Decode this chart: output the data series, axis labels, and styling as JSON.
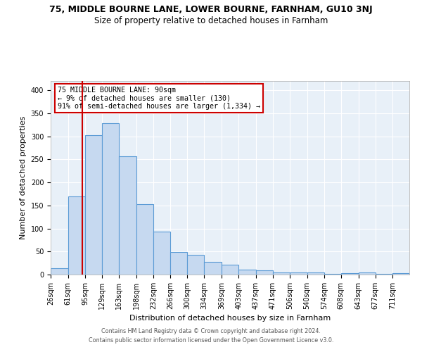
{
  "title": "75, MIDDLE BOURNE LANE, LOWER BOURNE, FARNHAM, GU10 3NJ",
  "subtitle": "Size of property relative to detached houses in Farnham",
  "xlabel": "Distribution of detached houses by size in Farnham",
  "ylabel": "Number of detached properties",
  "footer_line1": "Contains HM Land Registry data © Crown copyright and database right 2024.",
  "footer_line2": "Contains public sector information licensed under the Open Government Licence v3.0.",
  "bin_labels": [
    "26sqm",
    "61sqm",
    "95sqm",
    "129sqm",
    "163sqm",
    "198sqm",
    "232sqm",
    "266sqm",
    "300sqm",
    "334sqm",
    "369sqm",
    "403sqm",
    "437sqm",
    "471sqm",
    "506sqm",
    "540sqm",
    "574sqm",
    "608sqm",
    "643sqm",
    "677sqm",
    "711sqm"
  ],
  "hist_values": [
    13,
    170,
    302,
    328,
    257,
    153,
    93,
    49,
    43,
    27,
    21,
    10,
    9,
    5,
    4,
    4,
    1,
    3,
    4,
    1,
    3
  ],
  "bar_color": "#c6d9f0",
  "bar_edge_color": "#5b9bd5",
  "vline_x": 90,
  "vline_color": "#cc0000",
  "annotation_text": "75 MIDDLE BOURNE LANE: 90sqm\n← 9% of detached houses are smaller (130)\n91% of semi-detached houses are larger (1,334) →",
  "annotation_box_color": "#ffffff",
  "annotation_box_edge_color": "#cc0000",
  "ylim": [
    0,
    420
  ],
  "yticks": [
    0,
    50,
    100,
    150,
    200,
    250,
    300,
    350,
    400
  ],
  "bin_edges": [
    26,
    61,
    95,
    129,
    163,
    198,
    232,
    266,
    300,
    334,
    369,
    403,
    437,
    471,
    506,
    540,
    574,
    608,
    643,
    677,
    711,
    745
  ],
  "bg_color": "#e8f0f8",
  "fig_bg_color": "#ffffff",
  "title_fontsize": 9,
  "subtitle_fontsize": 8.5,
  "ylabel_fontsize": 8,
  "xlabel_fontsize": 8,
  "annotation_fontsize": 7.2,
  "tick_fontsize": 7,
  "footer_fontsize": 5.8
}
